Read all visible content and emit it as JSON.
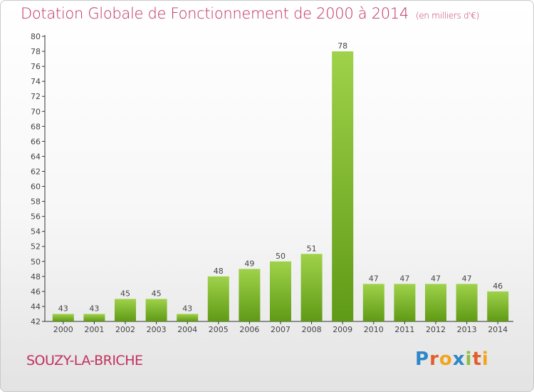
{
  "chart_data": {
    "type": "bar",
    "title": "Dotation Globale de Fonctionnement de 2000 à 2014",
    "subtitle": "(en milliers d'€)",
    "categories": [
      "2000",
      "2001",
      "2002",
      "2003",
      "2004",
      "2005",
      "2006",
      "2007",
      "2008",
      "2009",
      "2010",
      "2011",
      "2012",
      "2013",
      "2014"
    ],
    "values": [
      43,
      43,
      45,
      45,
      43,
      48,
      49,
      50,
      51,
      78,
      47,
      47,
      47,
      47,
      46
    ],
    "xlabel": "",
    "ylabel": "",
    "ylim": [
      42,
      80
    ],
    "ytick_step": 2,
    "grid": false,
    "bar_color": "#7dbb2c"
  },
  "footer": {
    "commune": "SOUZY-LA-BRICHE",
    "logo_text": "Proxiti"
  }
}
